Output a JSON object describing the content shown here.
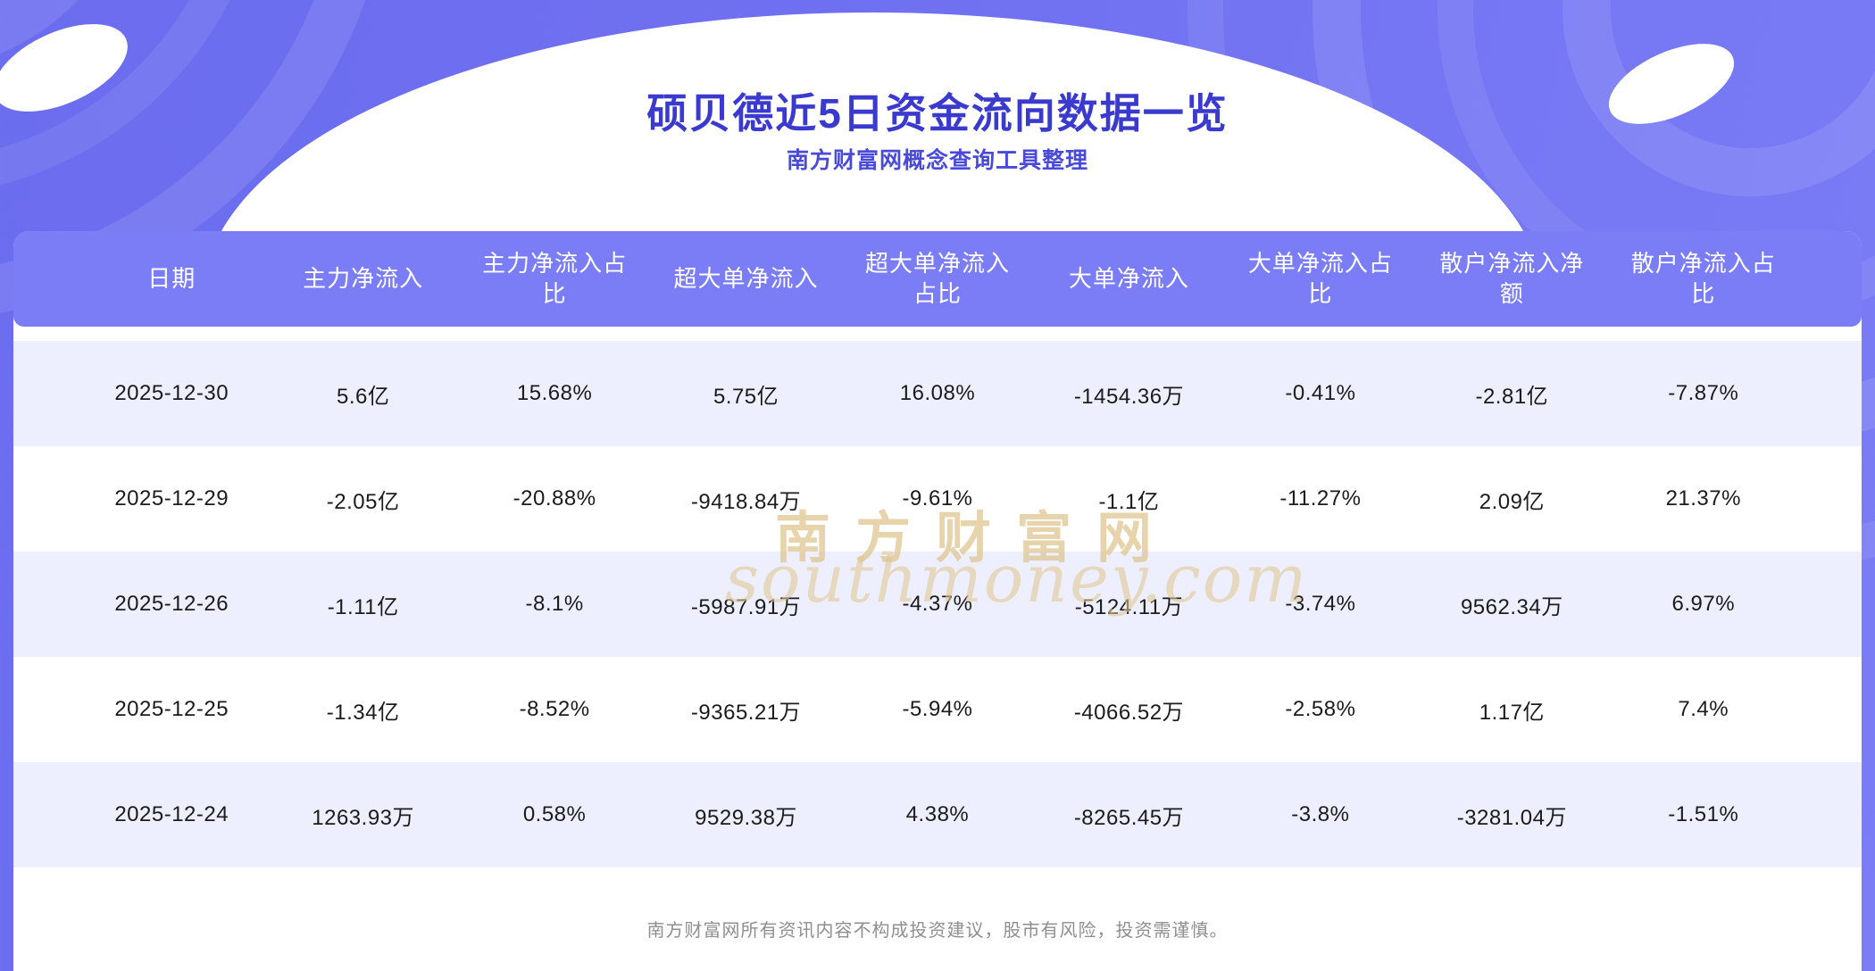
{
  "header": {
    "title": "硕贝德近5日资金流向数据一览",
    "subtitle": "南方财富网概念查询工具整理"
  },
  "chart_data": {
    "type": "table",
    "title": "硕贝德近5日资金流向数据一览",
    "columns": [
      "日期",
      "主力净流入",
      "主力净流入占比",
      "超大单净流入",
      "超大单净流入占比",
      "大单净流入",
      "大单净流入占比",
      "散户净流入净额",
      "散户净流入占比"
    ],
    "rows": [
      [
        "2025-12-30",
        "5.6亿",
        "15.68%",
        "5.75亿",
        "16.08%",
        "-1454.36万",
        "-0.41%",
        "-2.81亿",
        "-7.87%"
      ],
      [
        "2025-12-29",
        "-2.05亿",
        "-20.88%",
        "-9418.84万",
        "-9.61%",
        "-1.1亿",
        "-11.27%",
        "2.09亿",
        "21.37%"
      ],
      [
        "2025-12-26",
        "-1.11亿",
        "-8.1%",
        "-5987.91万",
        "-4.37%",
        "-5124.11万",
        "-3.74%",
        "9562.34万",
        "6.97%"
      ],
      [
        "2025-12-25",
        "-1.34亿",
        "-8.52%",
        "-9365.21万",
        "-5.94%",
        "-4066.52万",
        "-2.58%",
        "1.17亿",
        "7.4%"
      ],
      [
        "2025-12-24",
        "1263.93万",
        "0.58%",
        "9529.38万",
        "4.38%",
        "-8265.45万",
        "-3.8%",
        "-3281.04万",
        "-1.51%"
      ]
    ]
  },
  "watermark": {
    "line1": "南方财富网",
    "line2": "southmoney.com"
  },
  "footer": {
    "disclaimer": "南方财富网所有资讯内容不构成投资建议，股市有风险，投资需谨慎。"
  },
  "colors": {
    "background": "#6f71f1",
    "title_text": "#3a3ace",
    "subtitle_text": "#4a4ad9",
    "table_header_bg": "#7a7df5",
    "row_alt_bg": "#edeffe",
    "watermark_text": "#dec48c",
    "footer_text": "#8f8f8f"
  }
}
